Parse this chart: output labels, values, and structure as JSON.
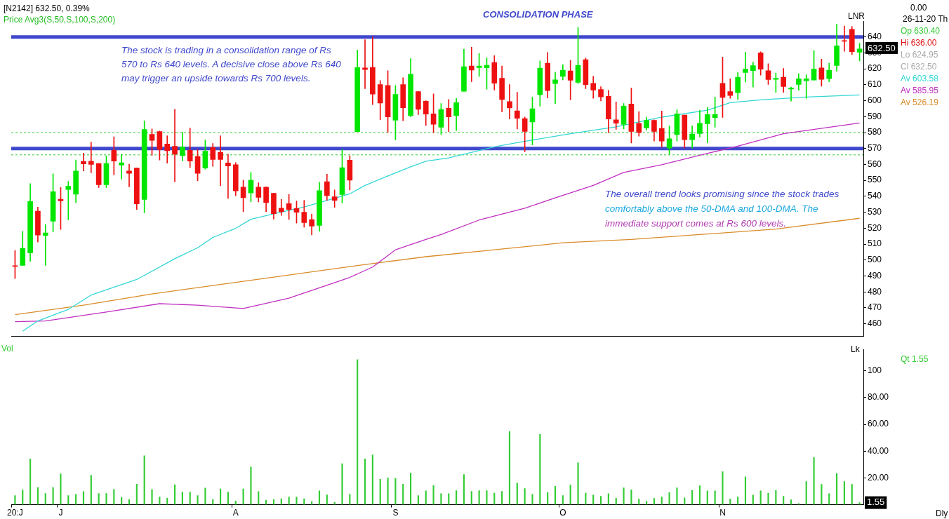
{
  "chart_data": [
    {
      "type": "candlestick",
      "title": "CONSOLIDATION PHASE",
      "annotations": [
        "[N2142] 632.50, 0.39%",
        "Price Avg3(S,50,S,100,S,200)",
        "The stock is trading in a consolidation range of Rs",
        "570 to Rs 640 levels. A decisive close above Rs 640",
        "may trigger an upside towards Rs 700 levels.",
        "The overall trend looks promising since the stock trades",
        "comfortably above the 50-DMA and 100-DMA. The",
        "immediate support comes at Rs 600 levels.",
        "LNR",
        "0.00",
        "26-11-20 Th",
        "Op 630.40",
        "Hi 636.00",
        "Lo 624.95",
        "Cl 632.50",
        "632.50"
      ],
      "categories": [
        null,
        null,
        null,
        null,
        null,
        null,
        null,
        null,
        null,
        null,
        null,
        null,
        null,
        null,
        null,
        null,
        null,
        null,
        null,
        null,
        null,
        null,
        null,
        null,
        null,
        null,
        null,
        null,
        null,
        null,
        null,
        null,
        null,
        null,
        null,
        null,
        null,
        null,
        null,
        null,
        null,
        null,
        null,
        null,
        null,
        null,
        null,
        null,
        null,
        null,
        null,
        null,
        null,
        null,
        null,
        null,
        null,
        null,
        null,
        null,
        null,
        null,
        null,
        null,
        null,
        null,
        null,
        null,
        null,
        null,
        null,
        null,
        null,
        null,
        null,
        null,
        null,
        null,
        null,
        null,
        null,
        null,
        null,
        null,
        null,
        null,
        null,
        null,
        null,
        null,
        null,
        null,
        null,
        null,
        null,
        null,
        null,
        null,
        null,
        null,
        null,
        null,
        null,
        null,
        null,
        null,
        null,
        null,
        null,
        null,
        null,
        null
      ],
      "ohlc": [
        [
          496.5,
          506,
          488.4,
          496
        ],
        [
          496.6,
          518,
          496.5,
          507.3
        ],
        [
          504.4,
          548,
          499.2,
          536.8
        ],
        [
          530.7,
          533.2,
          511.3,
          515.7
        ],
        [
          515.5,
          522.3,
          496.6,
          517
        ],
        [
          524.4,
          554.1,
          517.6,
          542.9
        ],
        [
          538.2,
          545.5,
          519.2,
          537.1
        ],
        [
          544.3,
          549.4,
          525.2,
          546.3
        ],
        [
          541.3,
          562.8,
          536,
          555.9
        ],
        [
          561.9,
          567.1,
          555.9,
          560.3
        ],
        [
          562,
          574,
          554.7,
          560
        ],
        [
          560.6,
          560.6,
          545.5,
          547.3
        ],
        [
          547.3,
          565.4,
          545.5,
          560.6
        ],
        [
          568.9,
          577.3,
          553.4,
          562.1
        ],
        [
          559.6,
          566.3,
          550.8,
          561
        ],
        [
          555.9,
          560.2,
          545.9,
          554.4
        ],
        [
          557.7,
          557.7,
          531.7,
          535.2
        ],
        [
          538,
          587.4,
          529.6,
          581.9
        ],
        [
          578.9,
          582.3,
          565.7,
          575.1
        ],
        [
          580.6,
          581,
          562.8,
          569.4
        ],
        [
          572.8,
          578,
          560.8,
          568.6
        ],
        [
          571.4,
          594.6,
          549.1,
          566.4
        ],
        [
          565.5,
          580.2,
          562.1,
          570.9
        ],
        [
          568.9,
          582.8,
          558,
          562.1
        ],
        [
          565,
          569.3,
          549.8,
          554.4
        ],
        [
          557.7,
          575.4,
          557,
          568.4
        ],
        [
          570.6,
          573.2,
          558.8,
          563.1
        ],
        [
          567.6,
          578,
          546.6,
          563.1
        ],
        [
          560.9,
          566.4,
          538.7,
          559
        ],
        [
          559.8,
          561.2,
          540.3,
          543.4
        ],
        [
          545.8,
          550.2,
          530.3,
          539.1
        ],
        [
          542.1,
          555,
          536.5,
          550.2
        ],
        [
          545.8,
          548.5,
          536.5,
          539.3
        ],
        [
          545.8,
          546,
          530.3,
          536
        ],
        [
          541.9,
          542,
          525.7,
          529.1
        ],
        [
          532.5,
          538,
          528,
          530.3
        ],
        [
          535.4,
          541.1,
          525.5,
          531.7
        ],
        [
          532.3,
          537.1,
          523.1,
          530
        ],
        [
          530,
          537.5,
          520.6,
          523.5
        ],
        [
          525.4,
          528.9,
          515.8,
          521.3
        ],
        [
          521.7,
          548.8,
          518,
          543.6
        ],
        [
          549.2,
          553.9,
          537.5,
          540.4
        ],
        [
          539.7,
          544,
          533,
          537.5
        ],
        [
          541.1,
          569.3,
          535.8,
          558
        ],
        [
          562.7,
          565.4,
          544,
          550.1
        ],
        [
          580.6,
          631.8,
          580.6,
          620.8
        ],
        [
          620.6,
          638.3,
          607.6,
          619.5
        ],
        [
          620.9,
          640.1,
          597.5,
          604.1
        ],
        [
          610.1,
          612.7,
          588.1,
          598.5
        ],
        [
          609.6,
          618.8,
          580.2,
          589.8
        ],
        [
          587.7,
          609.6,
          575.4,
          604
        ],
        [
          610.1,
          614.4,
          587.4,
          595.6
        ],
        [
          590.6,
          626.4,
          589.8,
          616.6
        ],
        [
          605.7,
          606,
          591.3,
          594.6
        ],
        [
          599.7,
          600,
          584.5,
          591.6
        ],
        [
          591.7,
          604.3,
          579.9,
          585.2
        ],
        [
          583.3,
          598.2,
          578.7,
          594.5
        ],
        [
          595.3,
          600.8,
          580.6,
          589.8
        ],
        [
          590.7,
          601.4,
          581.2,
          598.8
        ],
        [
          605.9,
          632.2,
          605.9,
          621.3
        ],
        [
          621.8,
          633.6,
          612,
          619.2
        ],
        [
          620.8,
          629.6,
          615.3,
          621.8
        ],
        [
          620.6,
          626.8,
          607.2,
          622.2
        ],
        [
          624,
          628.3,
          606.7,
          611
        ],
        [
          614.1,
          621.8,
          592.9,
          600.7
        ],
        [
          599.5,
          610.1,
          588.5,
          595.5
        ],
        [
          593.6,
          605.3,
          582.3,
          589
        ],
        [
          588.8,
          589.8,
          567.9,
          580.7
        ],
        [
          586.7,
          602.3,
          572.2,
          594.9
        ],
        [
          603.7,
          625,
          596.5,
          620.5
        ],
        [
          623.5,
          630.3,
          601.7,
          606.3
        ],
        [
          610.7,
          617.9,
          598.2,
          613.1
        ],
        [
          615.3,
          622.7,
          613.1,
          619.2
        ],
        [
          618.7,
          625.4,
          600.5,
          612.8
        ],
        [
          611.5,
          646,
          610.8,
          622.2
        ],
        [
          625.7,
          626.7,
          607.6,
          610.1
        ],
        [
          610.9,
          615.3,
          601.5,
          606.7
        ],
        [
          607,
          608.8,
          599.8,
          602.4
        ],
        [
          602.7,
          606.5,
          579.9,
          588.5
        ],
        [
          588,
          599.2,
          582,
          585.9
        ],
        [
          585.1,
          598.2,
          582.2,
          596.6
        ],
        [
          597.9,
          607.9,
          573.4,
          580.7
        ],
        [
          585.8,
          593.2,
          577.7,
          580
        ],
        [
          582.9,
          589.7,
          581.5,
          587.7
        ],
        [
          587.7,
          588,
          574.7,
          580.7
        ],
        [
          582.6,
          593.5,
          570.8,
          574.7
        ],
        [
          570.3,
          584.2,
          566.4,
          576.1
        ],
        [
          578.7,
          594.3,
          574.7,
          591.7
        ],
        [
          591,
          591,
          570.3,
          575.5
        ],
        [
          575.5,
          584.2,
          570.3,
          579.1
        ],
        [
          579.4,
          593.9,
          577.2,
          585.8
        ],
        [
          585.5,
          595.8,
          573.6,
          591.3
        ],
        [
          589.4,
          602.3,
          583.3,
          591.3
        ],
        [
          610.9,
          627.4,
          589.5,
          602
        ],
        [
          605.7,
          613.8,
          601.5,
          603.3
        ],
        [
          605,
          617.7,
          600.8,
          614.8
        ],
        [
          617.7,
          630.5,
          611.7,
          619.9
        ],
        [
          618.9,
          624.2,
          608.6,
          622
        ],
        [
          630,
          630.7,
          616,
          619.8
        ],
        [
          618.8,
          623.2,
          610.2,
          613.3
        ],
        [
          613.4,
          617.4,
          605.2,
          614.1
        ],
        [
          614.8,
          620.3,
          605.2,
          608.9
        ],
        [
          607.3,
          608.6,
          599.7,
          607.9
        ],
        [
          610.2,
          617,
          606.6,
          613.8
        ],
        [
          612.5,
          616.3,
          601.5,
          613.8
        ],
        [
          613,
          631.5,
          613,
          619.9
        ],
        [
          620.6,
          626.1,
          609.1,
          613.4
        ],
        [
          613.8,
          623.5,
          611.9,
          619.2
        ],
        [
          622.1,
          648.1,
          618.5,
          634.4
        ],
        [
          637.7,
          646.9,
          631,
          637.3
        ],
        [
          644.8,
          646.6,
          629,
          630.8
        ],
        [
          630.4,
          636,
          624.95,
          632.5
        ]
      ],
      "series": [
        {
          "type": "line",
          "name": "Av 603.58",
          "color": "#33d6d6",
          "values": [
            null,
            455.3,
            null,
            461.8,
            null,
            null,
            null,
            469,
            null,
            null,
            478,
            null,
            null,
            null,
            null,
            null,
            487.8,
            null,
            null,
            null,
            null,
            500.8,
            null,
            null,
            507.7,
            null,
            514.2,
            null,
            null,
            519.9,
            null,
            525.6,
            null,
            null,
            529,
            null,
            null,
            null,
            533.3,
            null,
            null,
            null,
            null,
            null,
            541.6,
            null,
            546.8,
            null,
            null,
            552.8,
            null,
            null,
            558.5,
            null,
            562,
            null,
            null,
            564.1,
            null,
            null,
            null,
            null,
            null,
            571,
            null,
            null,
            573.7,
            null,
            null,
            null,
            null,
            null,
            null,
            579.3,
            null,
            null,
            null,
            null,
            null,
            583.6,
            null,
            null,
            null,
            null,
            null,
            589.7,
            null,
            null,
            null,
            null,
            null,
            594,
            null,
            null,
            598.8,
            null,
            null,
            null,
            600.5,
            null,
            null,
            null,
            null,
            null,
            602.3,
            null,
            null,
            null,
            null,
            null,
            null,
            603.6
          ]
        },
        {
          "type": "line",
          "name": "Av 585.95",
          "color": "#c030c0",
          "values": [
            461.3,
            null,
            null,
            null,
            461.8,
            null,
            null,
            null,
            null,
            null,
            null,
            null,
            467.4,
            null,
            null,
            null,
            null,
            null,
            null,
            472.6,
            null,
            null,
            null,
            null,
            471.7,
            null,
            null,
            null,
            null,
            null,
            469.6,
            null,
            null,
            null,
            null,
            null,
            476.1,
            null,
            null,
            null,
            482.6,
            null,
            null,
            null,
            489.1,
            null,
            null,
            495.6,
            null,
            null,
            506.4,
            null,
            null,
            null,
            512.9,
            null,
            516,
            null,
            null,
            null,
            null,
            525.1,
            null,
            null,
            null,
            null,
            null,
            532.5,
            null,
            null,
            null,
            539,
            null,
            null,
            null,
            null,
            546.8,
            null,
            null,
            null,
            555,
            null,
            null,
            null,
            null,
            559.8,
            null,
            null,
            null,
            null,
            565.8,
            null,
            null,
            null,
            null,
            571.5,
            null,
            null,
            null,
            null,
            null,
            579.3,
            null,
            null,
            null,
            null,
            null,
            null,
            null,
            null,
            null,
            586
          ]
        },
        {
          "type": "line",
          "name": "Av 526.19",
          "color": "#d98c2a",
          "values": [
            465.7,
            null,
            null,
            null,
            null,
            null,
            null,
            null,
            null,
            471.7,
            null,
            null,
            null,
            null,
            null,
            null,
            null,
            null,
            478.7,
            null,
            null,
            null,
            null,
            null,
            null,
            null,
            null,
            null,
            null,
            486,
            null,
            null,
            null,
            null,
            null,
            null,
            null,
            null,
            null,
            null,
            null,
            null,
            null,
            null,
            null,
            496.5,
            null,
            null,
            null,
            null,
            null,
            null,
            null,
            null,
            502.1,
            null,
            null,
            null,
            null,
            null,
            null,
            null,
            null,
            506.4,
            null,
            null,
            null,
            null,
            null,
            null,
            null,
            null,
            510.8,
            null,
            null,
            null,
            null,
            null,
            null,
            null,
            null,
            512.9,
            null,
            null,
            null,
            null,
            null,
            null,
            null,
            null,
            516,
            null,
            null,
            null,
            null,
            null,
            null,
            null,
            null,
            null,
            519.4,
            null,
            null,
            null,
            null,
            null,
            null,
            null,
            null,
            null,
            null,
            526.2
          ]
        }
      ],
      "ylim": [
        452,
        650
      ],
      "yticks": [
        460,
        470,
        480,
        490,
        500,
        510,
        520,
        530,
        540,
        550,
        560,
        570,
        580,
        590,
        600,
        610,
        620,
        630,
        640
      ],
      "tick_labels": "y",
      "legend": "right",
      "marker": "none",
      "ref_lines": [
        {
          "axis": "y",
          "value": 640,
          "color": "#3f48cc"
        },
        {
          "axis": "y",
          "value": 570,
          "color": "#3f48cc"
        },
        {
          "axis": "y",
          "value": 580,
          "color": "#33cc33",
          "line_style": "dashed"
        },
        {
          "axis": "y",
          "value": 566,
          "color": "#33cc33",
          "line_style": "dashed"
        }
      ]
    },
    {
      "type": "bar",
      "title": "Vol",
      "ylabel": "Lk",
      "color": "#33cc33",
      "categories": [
        "20:J",
        null,
        null,
        null,
        null,
        null,
        "J",
        null,
        null,
        null,
        null,
        null,
        null,
        null,
        null,
        null,
        null,
        null,
        null,
        null,
        null,
        null,
        null,
        null,
        null,
        null,
        null,
        null,
        null,
        "A",
        null,
        null,
        null,
        null,
        null,
        null,
        null,
        null,
        null,
        null,
        null,
        null,
        null,
        null,
        null,
        null,
        null,
        null,
        null,
        null,
        "S",
        null,
        null,
        null,
        null,
        null,
        null,
        null,
        null,
        null,
        null,
        null,
        null,
        null,
        null,
        null,
        null,
        null,
        null,
        null,
        null,
        null,
        "O",
        null,
        null,
        null,
        null,
        null,
        null,
        null,
        null,
        null,
        null,
        null,
        null,
        null,
        null,
        null,
        null,
        null,
        null,
        null,
        null,
        "N",
        null,
        null,
        null,
        null,
        null,
        null,
        null,
        null,
        null,
        null,
        null,
        null,
        null,
        null,
        null,
        null,
        null,
        null
      ],
      "values": [
        6.8,
        11,
        34.2,
        12.8,
        8.4,
        12.8,
        23,
        6.8,
        7.8,
        9.8,
        22,
        8.4,
        8.4,
        11.4,
        5.4,
        3.8,
        15.4,
        36.6,
        11.4,
        5.8,
        4.8,
        15,
        9.4,
        9.4,
        6.8,
        12.4,
        3.8,
        11.8,
        9.4,
        2.8,
        11.8,
        28.2,
        9.8,
        3.4,
        3.8,
        4.4,
        5.8,
        5.8,
        4.4,
        2.4,
        10.4,
        7.4,
        1.8,
        30.6,
        7.8,
        108.4,
        34.2,
        37.2,
        19,
        20,
        19.6,
        15.4,
        23.6,
        6.8,
        10.4,
        14.4,
        8.2,
        8.2,
        10.5,
        22.6,
        10,
        10.5,
        10.5,
        8.6,
        10,
        54.6,
        16.1,
        12.1,
        7.7,
        52.7,
        9.1,
        13.8,
        6.8,
        14.7,
        31.3,
        8.6,
        7.2,
        6.3,
        8.2,
        4.9,
        12.6,
        11.2,
        4.2,
        2.6,
        4.7,
        5.8,
        9.1,
        12.6,
        5.1,
        10.7,
        14.2,
        10.3,
        10.3,
        24.7,
        4.2,
        5.8,
        20.8,
        7.2,
        10.3,
        8.6,
        10.7,
        6.3,
        3.7,
        0.9,
        17.3,
        35.2,
        15.2,
        8.2,
        23.3,
        17.3,
        15.2,
        1.55
      ],
      "ylim": [
        0,
        116
      ],
      "yticks": [
        {
          "value": 20,
          "label": "20.00"
        },
        {
          "value": 40,
          "label": "40.00"
        },
        {
          "value": 60,
          "label": "60.00"
        },
        {
          "value": 80,
          "label": "80.00"
        },
        100
      ],
      "annotations": [
        "Qt 1.55",
        "Dly",
        {
          "text": "1.55",
          "y": 1.55
        }
      ]
    }
  ]
}
